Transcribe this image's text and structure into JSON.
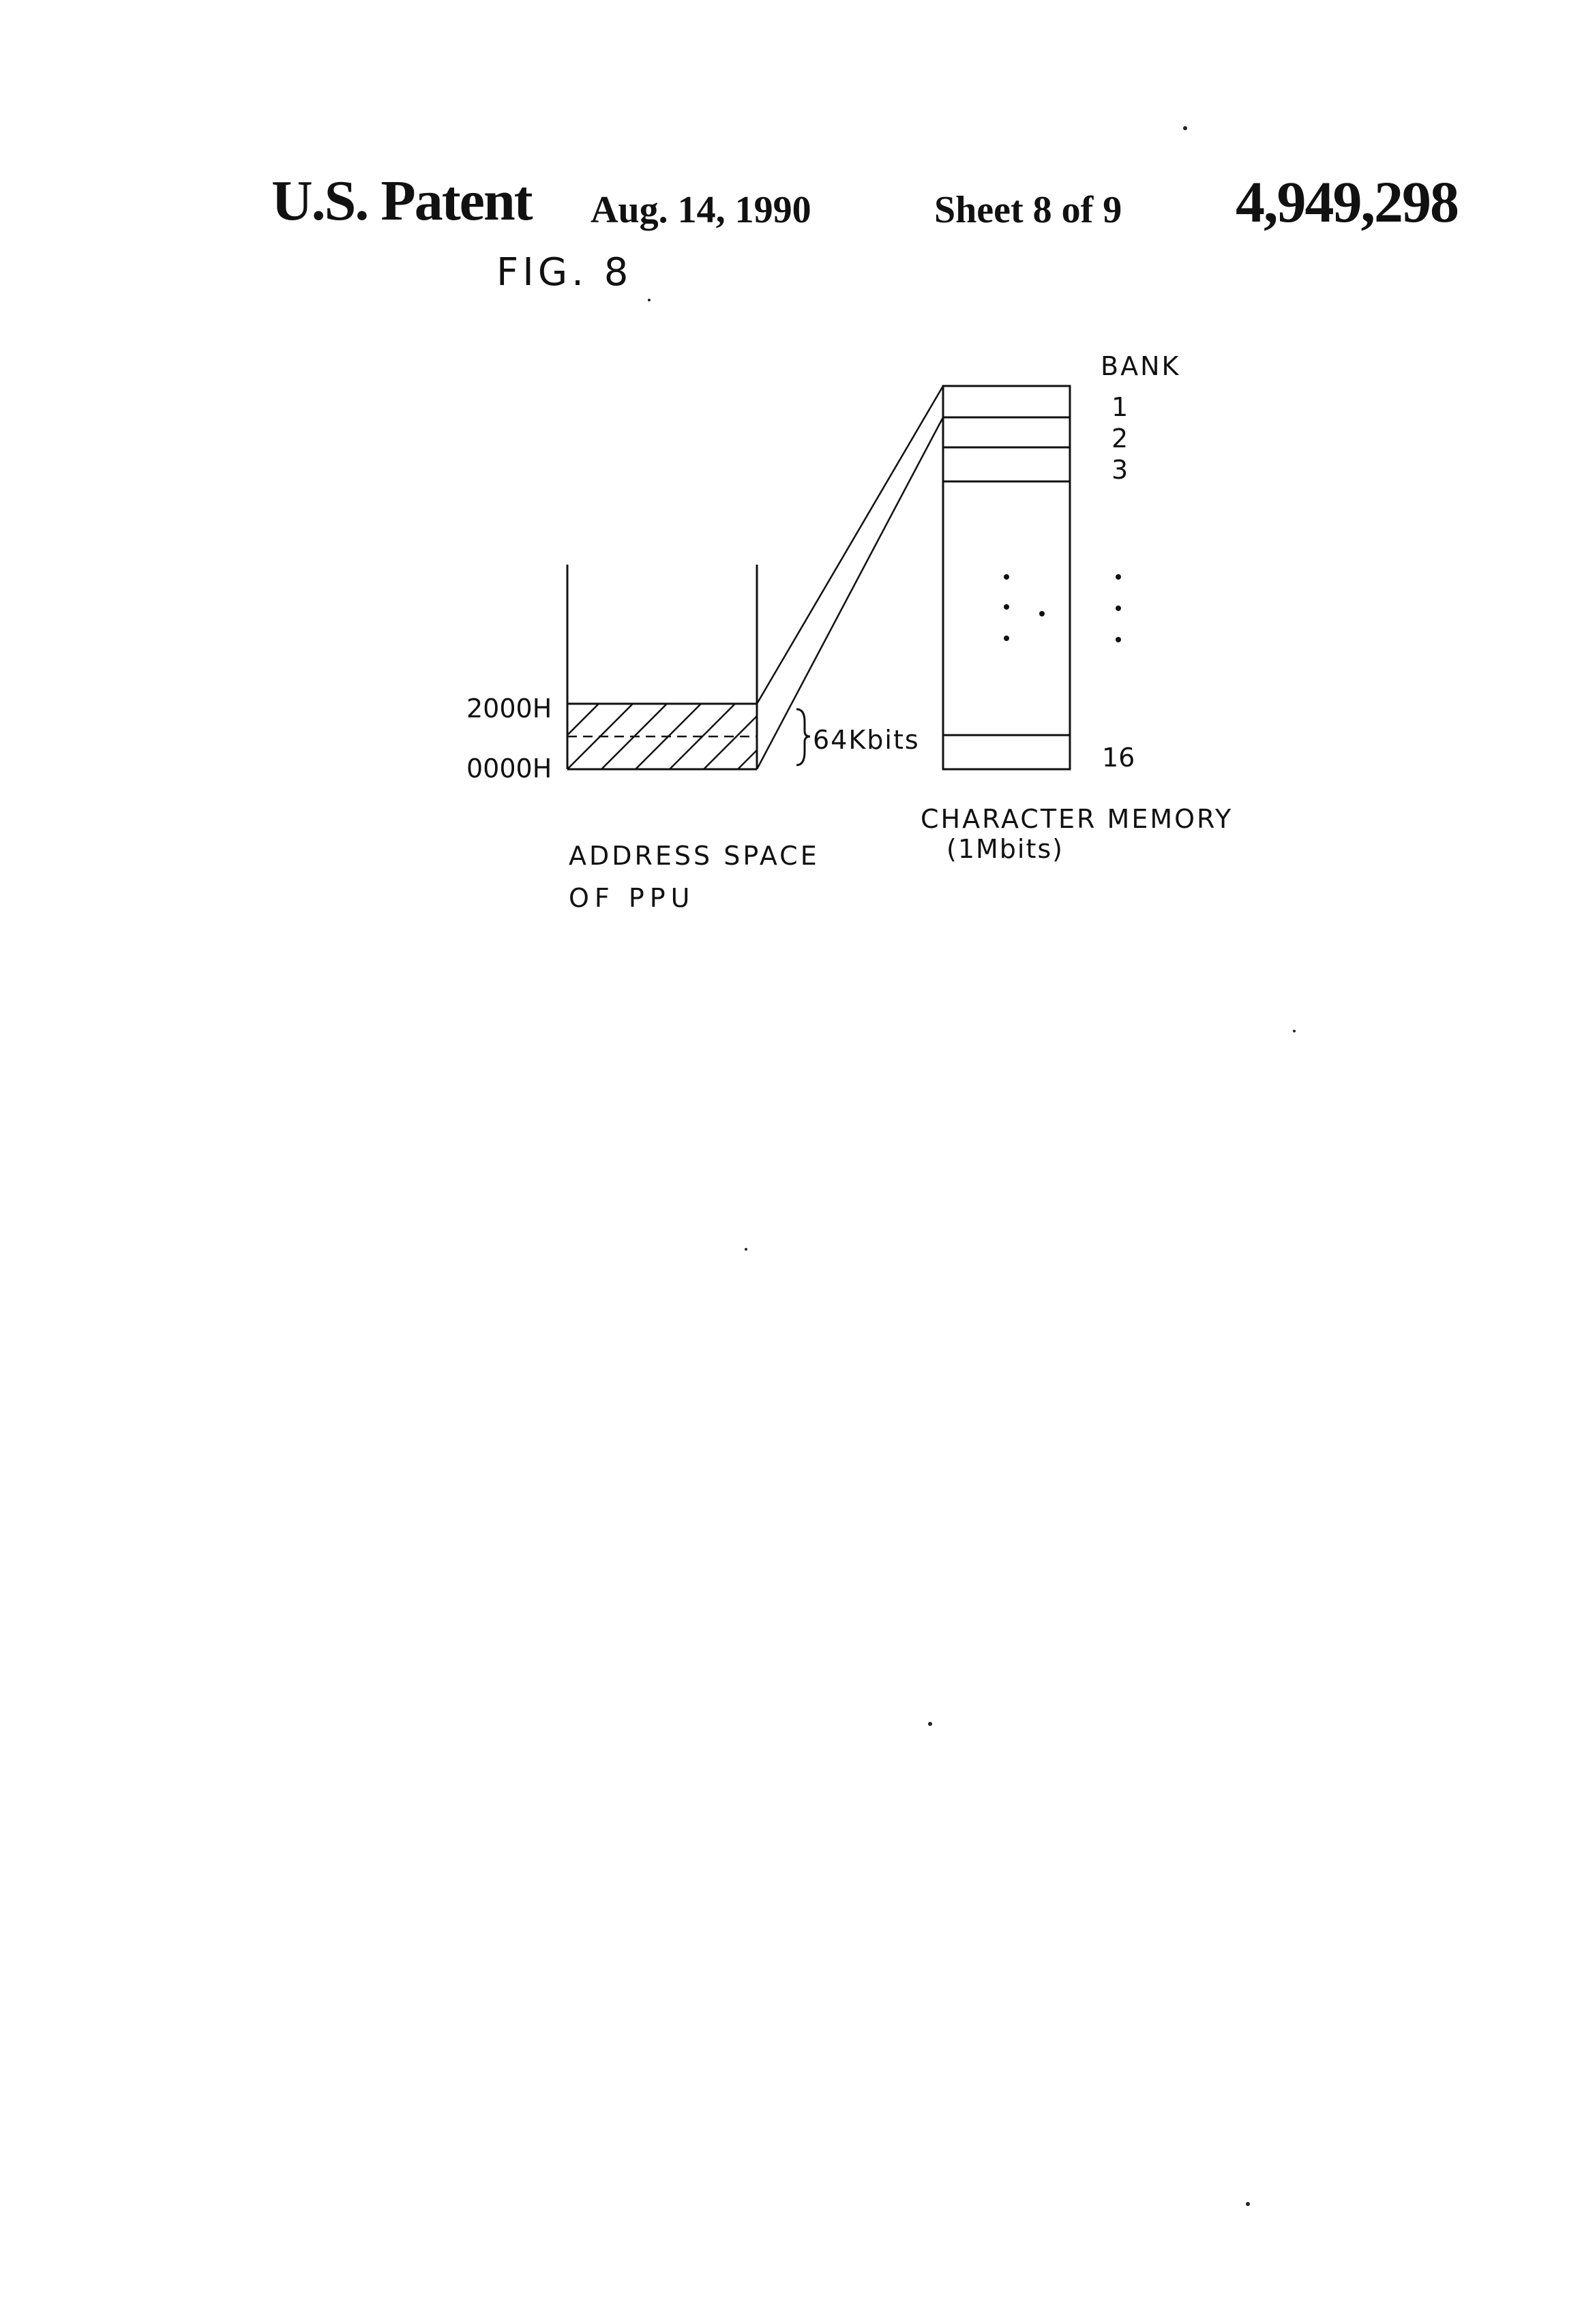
{
  "header": {
    "patent_label": "U.S. Patent",
    "date": "Aug. 14, 1990",
    "sheet": "Sheet 8 of 9",
    "patent_number": "4,949,298"
  },
  "figure": {
    "title": "FIG. 8",
    "ppu": {
      "addr_high": "2000H",
      "addr_low": "0000H",
      "size": "64Kbits",
      "caption_line1": "ADDRESS SPACE",
      "caption_line2": "OF PPU"
    },
    "memory": {
      "bank_header": "BANK",
      "banks": [
        "1",
        "2",
        "3",
        "16"
      ],
      "caption_line1": "CHARACTER MEMORY",
      "caption_line2": "(1Mbits)"
    }
  }
}
